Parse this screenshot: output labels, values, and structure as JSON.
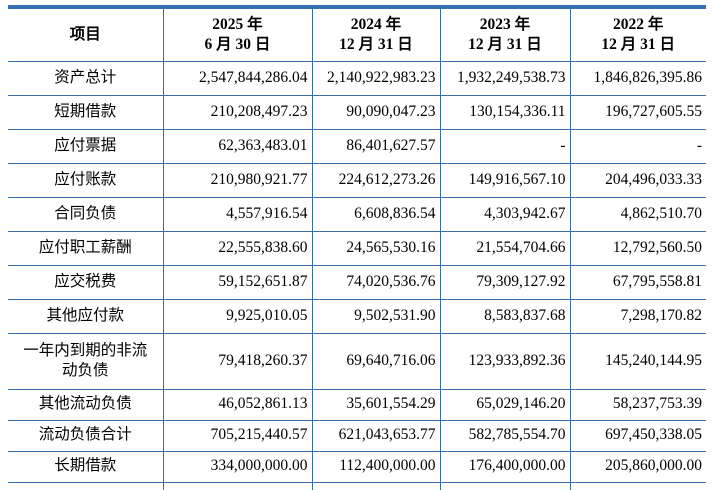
{
  "table": {
    "header": [
      {
        "label": "项目"
      },
      {
        "line1": "2025 年",
        "line2": "6 月 30 日"
      },
      {
        "line1": "2024 年",
        "line2": "12 月 31 日"
      },
      {
        "line1": "2023 年",
        "line2": "12 月 31 日"
      },
      {
        "line1": "2022 年",
        "line2": "12 月 31 日"
      }
    ],
    "rows": [
      {
        "label": "资产总计",
        "values": [
          "2,547,844,286.04",
          "2,140,922,983.23",
          "1,932,249,538.73",
          "1,846,826,395.86"
        ]
      },
      {
        "label": "短期借款",
        "values": [
          "210,208,497.23",
          "90,090,047.23",
          "130,154,336.11",
          "196,727,605.55"
        ]
      },
      {
        "label": "应付票据",
        "values": [
          "62,363,483.01",
          "86,401,627.57",
          "-",
          "-"
        ]
      },
      {
        "label": "应付账款",
        "values": [
          "210,980,921.77",
          "224,612,273.26",
          "149,916,567.10",
          "204,496,033.33"
        ]
      },
      {
        "label": "合同负债",
        "values": [
          "4,557,916.54",
          "6,608,836.54",
          "4,303,942.67",
          "4,862,510.70"
        ]
      },
      {
        "label": "应付职工薪酬",
        "values": [
          "22,555,838.60",
          "24,565,530.16",
          "21,554,704.66",
          "12,792,560.50"
        ]
      },
      {
        "label": "应交税费",
        "values": [
          "59,152,651.87",
          "74,020,536.76",
          "79,309,127.92",
          "67,795,558.81"
        ]
      },
      {
        "label": "其他应付款",
        "values": [
          "9,925,010.05",
          "9,502,531.90",
          "8,583,837.68",
          "7,298,170.82"
        ]
      },
      {
        "label": "一年内到期的非流动负债",
        "values": [
          "79,418,260.37",
          "69,640,716.06",
          "123,933,892.36",
          "145,240,144.95"
        ],
        "tall": true
      },
      {
        "label": "其他流动负债",
        "values": [
          "46,052,861.13",
          "35,601,554.29",
          "65,029,146.20",
          "58,237,753.39"
        ],
        "short": true
      },
      {
        "label": "流动负债合计",
        "values": [
          "705,215,440.57",
          "621,043,653.77",
          "582,785,554.70",
          "697,450,338.05"
        ],
        "short": true
      },
      {
        "label": "长期借款",
        "values": [
          "334,000,000.00",
          "112,400,000.00",
          "176,400,000.00",
          "205,860,000.00"
        ],
        "short": true
      }
    ]
  },
  "colors": {
    "border": "#3a6fad",
    "top_bar": "#3571b5",
    "text": "#000000",
    "background": "#ffffff"
  }
}
